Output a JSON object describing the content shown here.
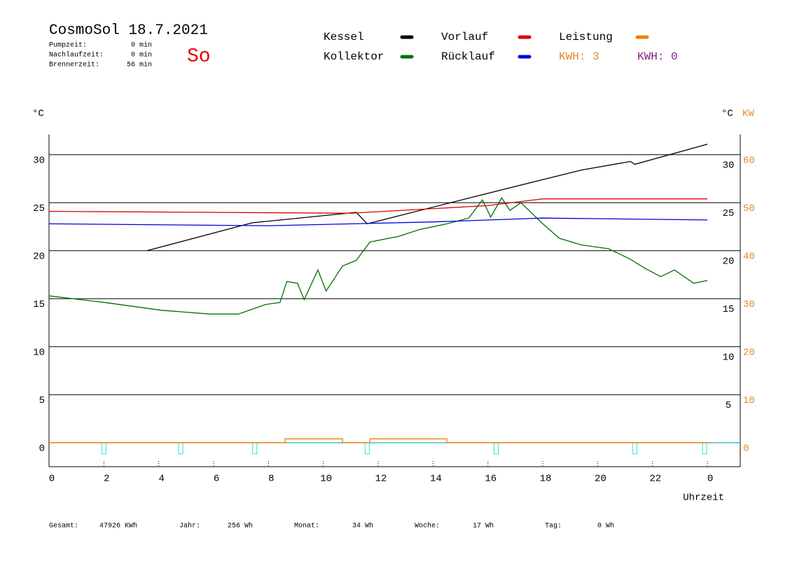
{
  "chart_data": {
    "type": "line",
    "title": "CosmoSol 18.7.2021",
    "day": "So",
    "info": [
      {
        "label": "Pumpzeit:",
        "value": "0 min"
      },
      {
        "label": "Nachlaufzeit:",
        "value": "0 min"
      },
      {
        "label": "Brennerzeit:",
        "value": "56 min"
      }
    ],
    "kwh_labels": [
      {
        "text": "KWH: 3",
        "color": "#e08a2c"
      },
      {
        "text": "KWH: 0",
        "color": "#802080"
      }
    ],
    "y_label": "°C",
    "y_label_right": "°C",
    "y2_label": "KW",
    "x_label": "Uhrzeit",
    "xlim": [
      0,
      25.2
    ],
    "xticks": [
      0,
      2,
      4,
      6,
      8,
      10,
      12,
      14,
      16,
      18,
      20,
      22,
      {
        "value": 24,
        "label": "0"
      }
    ],
    "ylim": [
      -2.5,
      32.1
    ],
    "yticks": [
      0,
      5,
      10,
      15,
      20,
      25,
      30
    ],
    "yticks_right": [
      5,
      10,
      15,
      20,
      25,
      30
    ],
    "y2lim": [
      -5,
      64.2
    ],
    "y2ticks": [
      0,
      10,
      20,
      30,
      40,
      50,
      60
    ],
    "grid": true,
    "series": [
      {
        "name": "Kessel",
        "color": "#000000",
        "x": [
          3.57,
          7.4,
          11.2,
          11.6,
          15.6,
          19.4,
          21.2,
          21.35,
          24
        ],
        "values": [
          20.0,
          22.9,
          24.0,
          22.8,
          25.7,
          28.4,
          29.3,
          29.0,
          31.1
        ]
      },
      {
        "name": "Kollektor",
        "color": "#007000",
        "x": [
          0,
          2.04,
          4.08,
          5.87,
          6.9,
          7.9,
          8.42,
          8.67,
          9.06,
          9.3,
          9.8,
          10.1,
          10.7,
          11.2,
          11.7,
          12.75,
          13.5,
          14.5,
          15.3,
          15.8,
          16.1,
          16.5,
          16.8,
          17.2,
          17.6,
          18.0,
          18.6,
          19.4,
          20.4,
          21.2,
          21.7,
          22.3,
          22.8,
          23.5,
          24
        ],
        "values": [
          15.3,
          14.6,
          13.8,
          13.4,
          13.4,
          14.4,
          14.6,
          16.8,
          16.6,
          14.9,
          18.0,
          15.8,
          18.4,
          19.0,
          20.9,
          21.5,
          22.2,
          22.8,
          23.4,
          25.3,
          23.5,
          25.5,
          24.2,
          25.0,
          23.9,
          22.8,
          21.3,
          20.6,
          20.2,
          19.1,
          18.2,
          17.3,
          18.0,
          16.6,
          16.9
        ]
      },
      {
        "name": "Vorlauf",
        "color": "#e00000",
        "x": [
          0,
          11,
          16,
          18,
          24
        ],
        "values": [
          24.1,
          23.9,
          24.7,
          25.4,
          25.4
        ]
      },
      {
        "name": "Rücklauf",
        "color": "#0000e0",
        "x": [
          0,
          8,
          14,
          18,
          24
        ],
        "values": [
          22.8,
          22.6,
          23.0,
          23.4,
          23.2
        ]
      },
      {
        "name": "Leistung",
        "color": "#f08000",
        "axis": "y2",
        "x": [
          0,
          8.6,
          8.6,
          10.7,
          10.7,
          11.7,
          11.7,
          14.5,
          14.5,
          24
        ],
        "values": [
          0,
          0,
          0.8,
          0.8,
          0,
          0,
          0.8,
          0.8,
          0,
          0
        ]
      }
    ],
    "pump_pulses": {
      "color": "#30e0e0",
      "x": [
        2.0,
        4.8,
        7.5,
        11.6,
        16.3,
        21.35,
        23.9
      ]
    },
    "footer": [
      {
        "label": "Gesamt:",
        "value": "47926 KWh"
      },
      {
        "label": "Jahr:",
        "value": "256 Wh"
      },
      {
        "label": "Monat:",
        "value": "34 Wh"
      },
      {
        "label": "Woche:",
        "value": "17 Wh"
      },
      {
        "label": "Tag:",
        "value": "0 Wh"
      }
    ]
  }
}
